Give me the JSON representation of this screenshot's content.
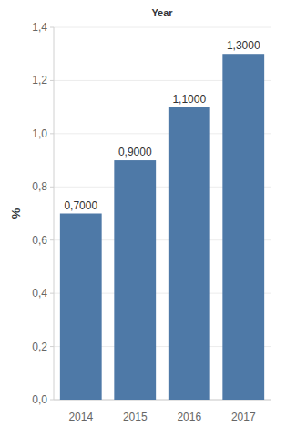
{
  "chart_data": {
    "type": "bar",
    "title": "Year",
    "y_label": "%",
    "categories": [
      "2014",
      "2015",
      "2016",
      "2017"
    ],
    "values": [
      0.7,
      0.9,
      1.1,
      1.3
    ],
    "value_labels": [
      "0,7000",
      "0,9000",
      "1,1000",
      "1,3000"
    ],
    "color": "#4e79a7",
    "ylim": [
      0,
      1.4
    ],
    "yticks": [
      {
        "value": 0,
        "label": "0,0"
      },
      {
        "value": 0.2,
        "label": "0,2"
      },
      {
        "value": 0.4,
        "label": "0,4"
      },
      {
        "value": 0.6,
        "label": "0,6"
      },
      {
        "value": 0.8,
        "label": "0,8"
      },
      {
        "value": 1.0,
        "label": "1,0"
      },
      {
        "value": 1.2,
        "label": "1,2"
      },
      {
        "value": 1.4,
        "label": "1,4"
      }
    ],
    "grid": true,
    "data_labels": true
  }
}
